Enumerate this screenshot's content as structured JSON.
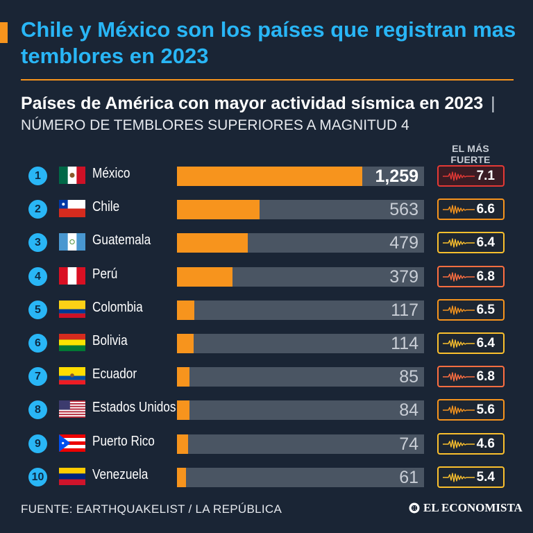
{
  "header": {
    "title": "Chile y México son los países que registran mas temblores en 2023",
    "subtitle_bold": "Países de América con mayor actividad sísmica en 2023",
    "subtitle_separator": "|",
    "subtitle_rest": "NÚMERO DE TEMBLORES SUPERIORES A MAGNITUD 4",
    "strongest_label": "EL MÁS FUERTE"
  },
  "chart_data": {
    "type": "bar",
    "orientation": "horizontal",
    "title": "Países de América con mayor actividad sísmica en 2023",
    "subtitle": "NÚMERO DE TEMBLORES SUPERIORES A MAGNITUD 4",
    "xlim": [
      0,
      1259
    ],
    "grid": false,
    "bar_color": "#f7941d",
    "track_color": "#4a5563",
    "categories": [
      "México",
      "Chile",
      "Guatemala",
      "Perú",
      "Colombia",
      "Bolivia",
      "Ecuador",
      "Estados Unidos",
      "Puerto Rico",
      "Venezuela"
    ],
    "ranks": [
      "1",
      "2",
      "3",
      "4",
      "5",
      "6",
      "7",
      "8",
      "9",
      "10"
    ],
    "values": [
      1259,
      563,
      479,
      379,
      117,
      114,
      85,
      84,
      74,
      61
    ],
    "value_labels": [
      "1,259",
      "563",
      "479",
      "379",
      "117",
      "114",
      "85",
      "84",
      "74",
      "61"
    ],
    "strongest_magnitude": [
      "7.1",
      "6.6",
      "6.4",
      "6.8",
      "6.5",
      "6.4",
      "6.8",
      "5.6",
      "4.6",
      "5.4"
    ],
    "magnitude_colors": [
      "#e53935",
      "#f7941d",
      "#fbc02d",
      "#ff6e40",
      "#f7941d",
      "#fbc02d",
      "#ff6e40",
      "#f7941d",
      "#fbc02d",
      "#fbc02d"
    ],
    "flags": [
      "mexico",
      "chile",
      "guatemala",
      "peru",
      "colombia",
      "bolivia",
      "ecuador",
      "usa",
      "puerto-rico",
      "venezuela"
    ]
  },
  "footer": {
    "source": "FUENTE: EARTHQUAKELIST / LA REPÚBLICA",
    "brand": "EL ECONOMISTA"
  },
  "colors": {
    "background": "#1a2535",
    "accent": "#f7941d",
    "headline": "#29b6f6"
  }
}
